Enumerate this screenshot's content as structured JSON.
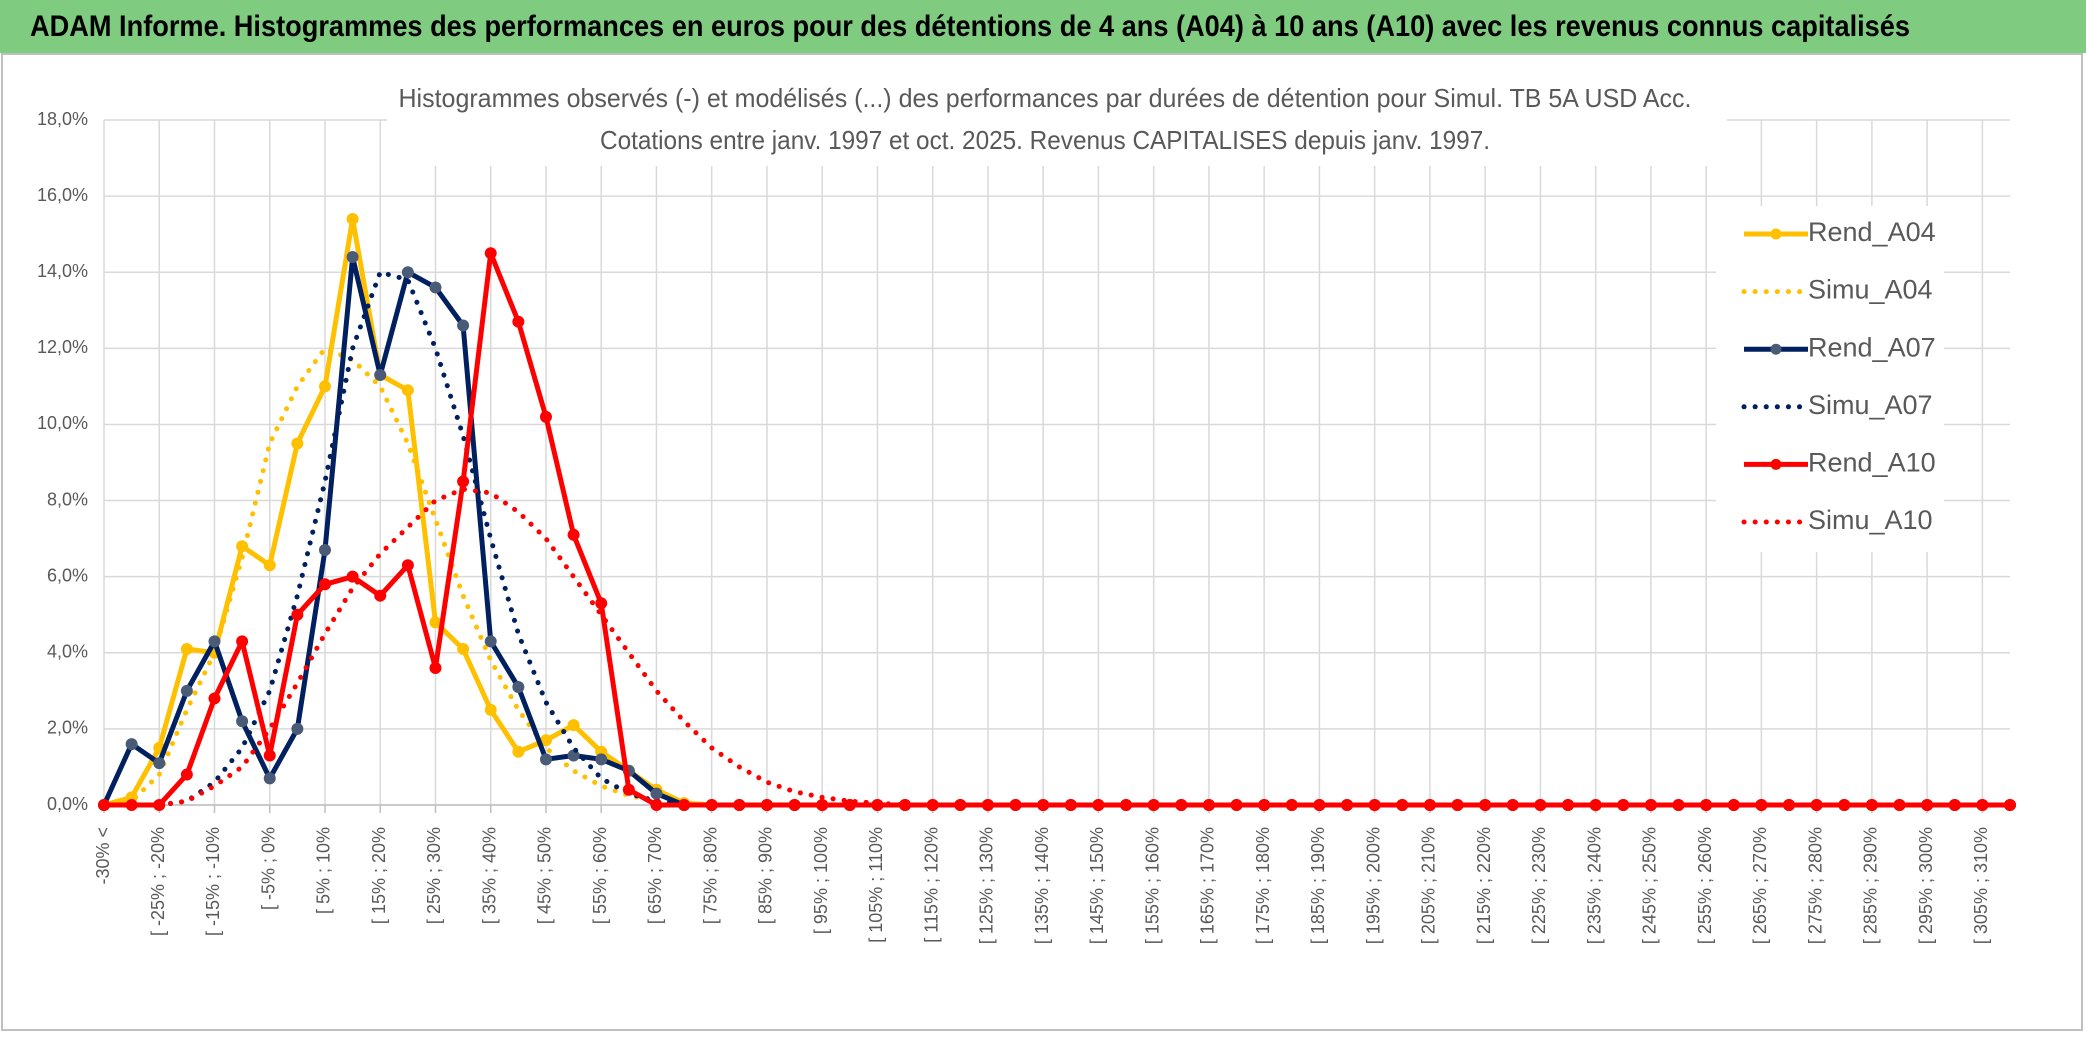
{
  "header": {
    "title": "ADAM Informe. Histogrammes des performances en euros pour des détentions de 4 ans (A04) à 10 ans (A10) avec les revenus connus capitalisés"
  },
  "chart_data": {
    "type": "line",
    "subtitle": [
      "Histogrammes observés (-) et modélisés (...) des performances par durées de détention pour Simul. TB 5A USD Acc.",
      "Cotations entre janv. 1997 et oct. 2025. Revenus CAPITALISES depuis janv. 1997."
    ],
    "categories": [
      "-30% <",
      null,
      "[ -25% ; -20%",
      null,
      "[ -15% ; -10%",
      null,
      "[ -5% ; 0%",
      null,
      "[ 5% ; 10%",
      null,
      "[ 15% ; 20%",
      null,
      "[ 25% ; 30%",
      null,
      "[ 35% ; 40%",
      null,
      "[ 45% ; 50%",
      null,
      "[ 55% ; 60%",
      null,
      "[ 65% ; 70%",
      null,
      "[ 75% ; 80%",
      null,
      "[ 85% ; 90%",
      null,
      "[ 95% ; 100%",
      null,
      "[ 105% ; 110%",
      null,
      "[ 115% ; 120%",
      null,
      "[ 125% ; 130%",
      null,
      "[ 135% ; 140%",
      null,
      "[ 145% ; 150%",
      null,
      "[ 155% ; 160%",
      null,
      "[ 165% ; 170%",
      null,
      "[ 175% ; 180%",
      null,
      "[ 185% ; 190%",
      null,
      "[ 195% ; 200%",
      null,
      "[ 205% ; 210%",
      null,
      "[ 215% ; 220%",
      null,
      "[ 225% ; 230%",
      null,
      "[ 235% ; 240%",
      null,
      "[ 245% ; 250%",
      null,
      "[ 255% ; 260%",
      null,
      "[ 265% ; 270%",
      null,
      "[ 275% ; 280%",
      null,
      "[ 285% ; 290%",
      null,
      "[ 295% ; 300%",
      null,
      "[ 305% ; 310%",
      null
    ],
    "series": [
      {
        "name": "Rend_A04",
        "color": "#ffc000",
        "marker_color": "#ffc000",
        "dash": "solid",
        "marker": true,
        "values": [
          0,
          0.2,
          1.5,
          4.1,
          4.0,
          6.8,
          6.3,
          9.5,
          11.0,
          15.4,
          11.3,
          10.9,
          4.8,
          4.1,
          2.5,
          1.4,
          1.7,
          2.1,
          1.4,
          0.9,
          0.4,
          0.05,
          0,
          0,
          0,
          0,
          0,
          0,
          0,
          0,
          0,
          0,
          0,
          0,
          0,
          0,
          0,
          0,
          0,
          0,
          0,
          0,
          0,
          0,
          0,
          0,
          0,
          0,
          0,
          0,
          0,
          0,
          0,
          0,
          0,
          0,
          0,
          0,
          0,
          0,
          0,
          0,
          0,
          0,
          0,
          0,
          0,
          0,
          0,
          0
        ]
      },
      {
        "name": "Simu_A04",
        "color": "#ffc000",
        "dash": "dotted",
        "marker": false,
        "values": [
          0,
          0.1,
          0.8,
          2.5,
          4.0,
          6.5,
          9.5,
          11.0,
          12.0,
          11.7,
          11.0,
          9.5,
          7.5,
          5.5,
          3.8,
          2.5,
          1.5,
          0.9,
          0.5,
          0.25,
          0.1,
          0.03,
          0,
          0,
          0,
          0,
          0,
          0,
          0,
          0,
          0,
          0,
          0,
          0,
          0,
          0,
          0,
          0,
          0,
          0,
          0,
          0,
          0,
          0,
          0,
          0,
          0,
          0,
          0,
          0,
          0,
          0,
          0,
          0,
          0,
          0,
          0,
          0,
          0,
          0,
          0,
          0,
          0,
          0,
          0,
          0,
          0,
          0,
          0,
          0
        ]
      },
      {
        "name": "Rend_A07",
        "color": "#002060",
        "marker_color": "#4a5b78",
        "dash": "solid",
        "marker": true,
        "values": [
          0,
          1.6,
          1.1,
          3.0,
          4.3,
          2.2,
          0.7,
          2.0,
          6.7,
          14.4,
          11.3,
          14.0,
          13.6,
          12.6,
          4.3,
          3.1,
          1.2,
          1.3,
          1.2,
          0.9,
          0.3,
          0,
          0,
          0,
          0,
          0,
          0,
          0,
          0,
          0,
          0,
          0,
          0,
          0,
          0,
          0,
          0,
          0,
          0,
          0,
          0,
          0,
          0,
          0,
          0,
          0,
          0,
          0,
          0,
          0,
          0,
          0,
          0,
          0,
          0,
          0,
          0,
          0,
          0,
          0,
          0,
          0,
          0,
          0,
          0,
          0,
          0,
          0,
          0,
          0
        ]
      },
      {
        "name": "Simu_A07",
        "color": "#002060",
        "dash": "dotted",
        "marker": false,
        "values": [
          0,
          0,
          0,
          0.1,
          0.6,
          1.5,
          3.0,
          5.5,
          8.5,
          12.0,
          14.0,
          13.8,
          12.0,
          9.7,
          7.0,
          4.5,
          2.7,
          1.5,
          0.7,
          0.3,
          0.1,
          0,
          0,
          0,
          0,
          0,
          0,
          0,
          0,
          0,
          0,
          0,
          0,
          0,
          0,
          0,
          0,
          0,
          0,
          0,
          0,
          0,
          0,
          0,
          0,
          0,
          0,
          0,
          0,
          0,
          0,
          0,
          0,
          0,
          0,
          0,
          0,
          0,
          0,
          0,
          0,
          0,
          0,
          0,
          0,
          0,
          0,
          0,
          0,
          0
        ]
      },
      {
        "name": "Rend_A10",
        "color": "#ff0000",
        "marker_color": "#ff0000",
        "dash": "solid",
        "marker": true,
        "values": [
          0,
          0,
          0,
          0.8,
          2.8,
          4.3,
          1.3,
          5.0,
          5.8,
          6.0,
          5.5,
          6.3,
          3.6,
          8.5,
          14.5,
          12.7,
          10.2,
          7.1,
          5.3,
          0.4,
          0,
          0,
          0,
          0,
          0,
          0,
          0,
          0,
          0,
          0,
          0,
          0,
          0,
          0,
          0,
          0,
          0,
          0,
          0,
          0,
          0,
          0,
          0,
          0,
          0,
          0,
          0,
          0,
          0,
          0,
          0,
          0,
          0,
          0,
          0,
          0,
          0,
          0,
          0,
          0,
          0,
          0,
          0,
          0,
          0,
          0,
          0,
          0,
          0,
          0
        ]
      },
      {
        "name": "Simu_A10",
        "color": "#ff0000",
        "dash": "dotted",
        "marker": false,
        "values": [
          0,
          0,
          0,
          0.1,
          0.5,
          1.0,
          2.0,
          3.2,
          4.5,
          5.7,
          6.6,
          7.3,
          8.0,
          8.3,
          8.2,
          7.7,
          7.0,
          6.0,
          5.0,
          4.0,
          3.0,
          2.2,
          1.5,
          1.0,
          0.6,
          0.35,
          0.2,
          0.1,
          0.05,
          0,
          0,
          0,
          0,
          0,
          0,
          0,
          0,
          0,
          0,
          0,
          0,
          0,
          0,
          0,
          0,
          0,
          0,
          0,
          0,
          0,
          0,
          0,
          0,
          0,
          0,
          0,
          0,
          0,
          0,
          0,
          0,
          0,
          0,
          0,
          0,
          0,
          0,
          0,
          0,
          0
        ]
      }
    ],
    "ylim": [
      0,
      18
    ],
    "yticks": [
      {
        "value": 0,
        "label": "0,0%"
      },
      {
        "value": 2,
        "label": "2,0%"
      },
      {
        "value": 4,
        "label": "4,0%"
      },
      {
        "value": 6,
        "label": "6,0%"
      },
      {
        "value": 8,
        "label": "8,0%"
      },
      {
        "value": 10,
        "label": "10,0%"
      },
      {
        "value": 12,
        "label": "12,0%"
      },
      {
        "value": 14,
        "label": "14,0%"
      },
      {
        "value": 16,
        "label": "16,0%"
      },
      {
        "value": 18,
        "label": "18,0%"
      }
    ],
    "grid": true,
    "legend": "right"
  }
}
